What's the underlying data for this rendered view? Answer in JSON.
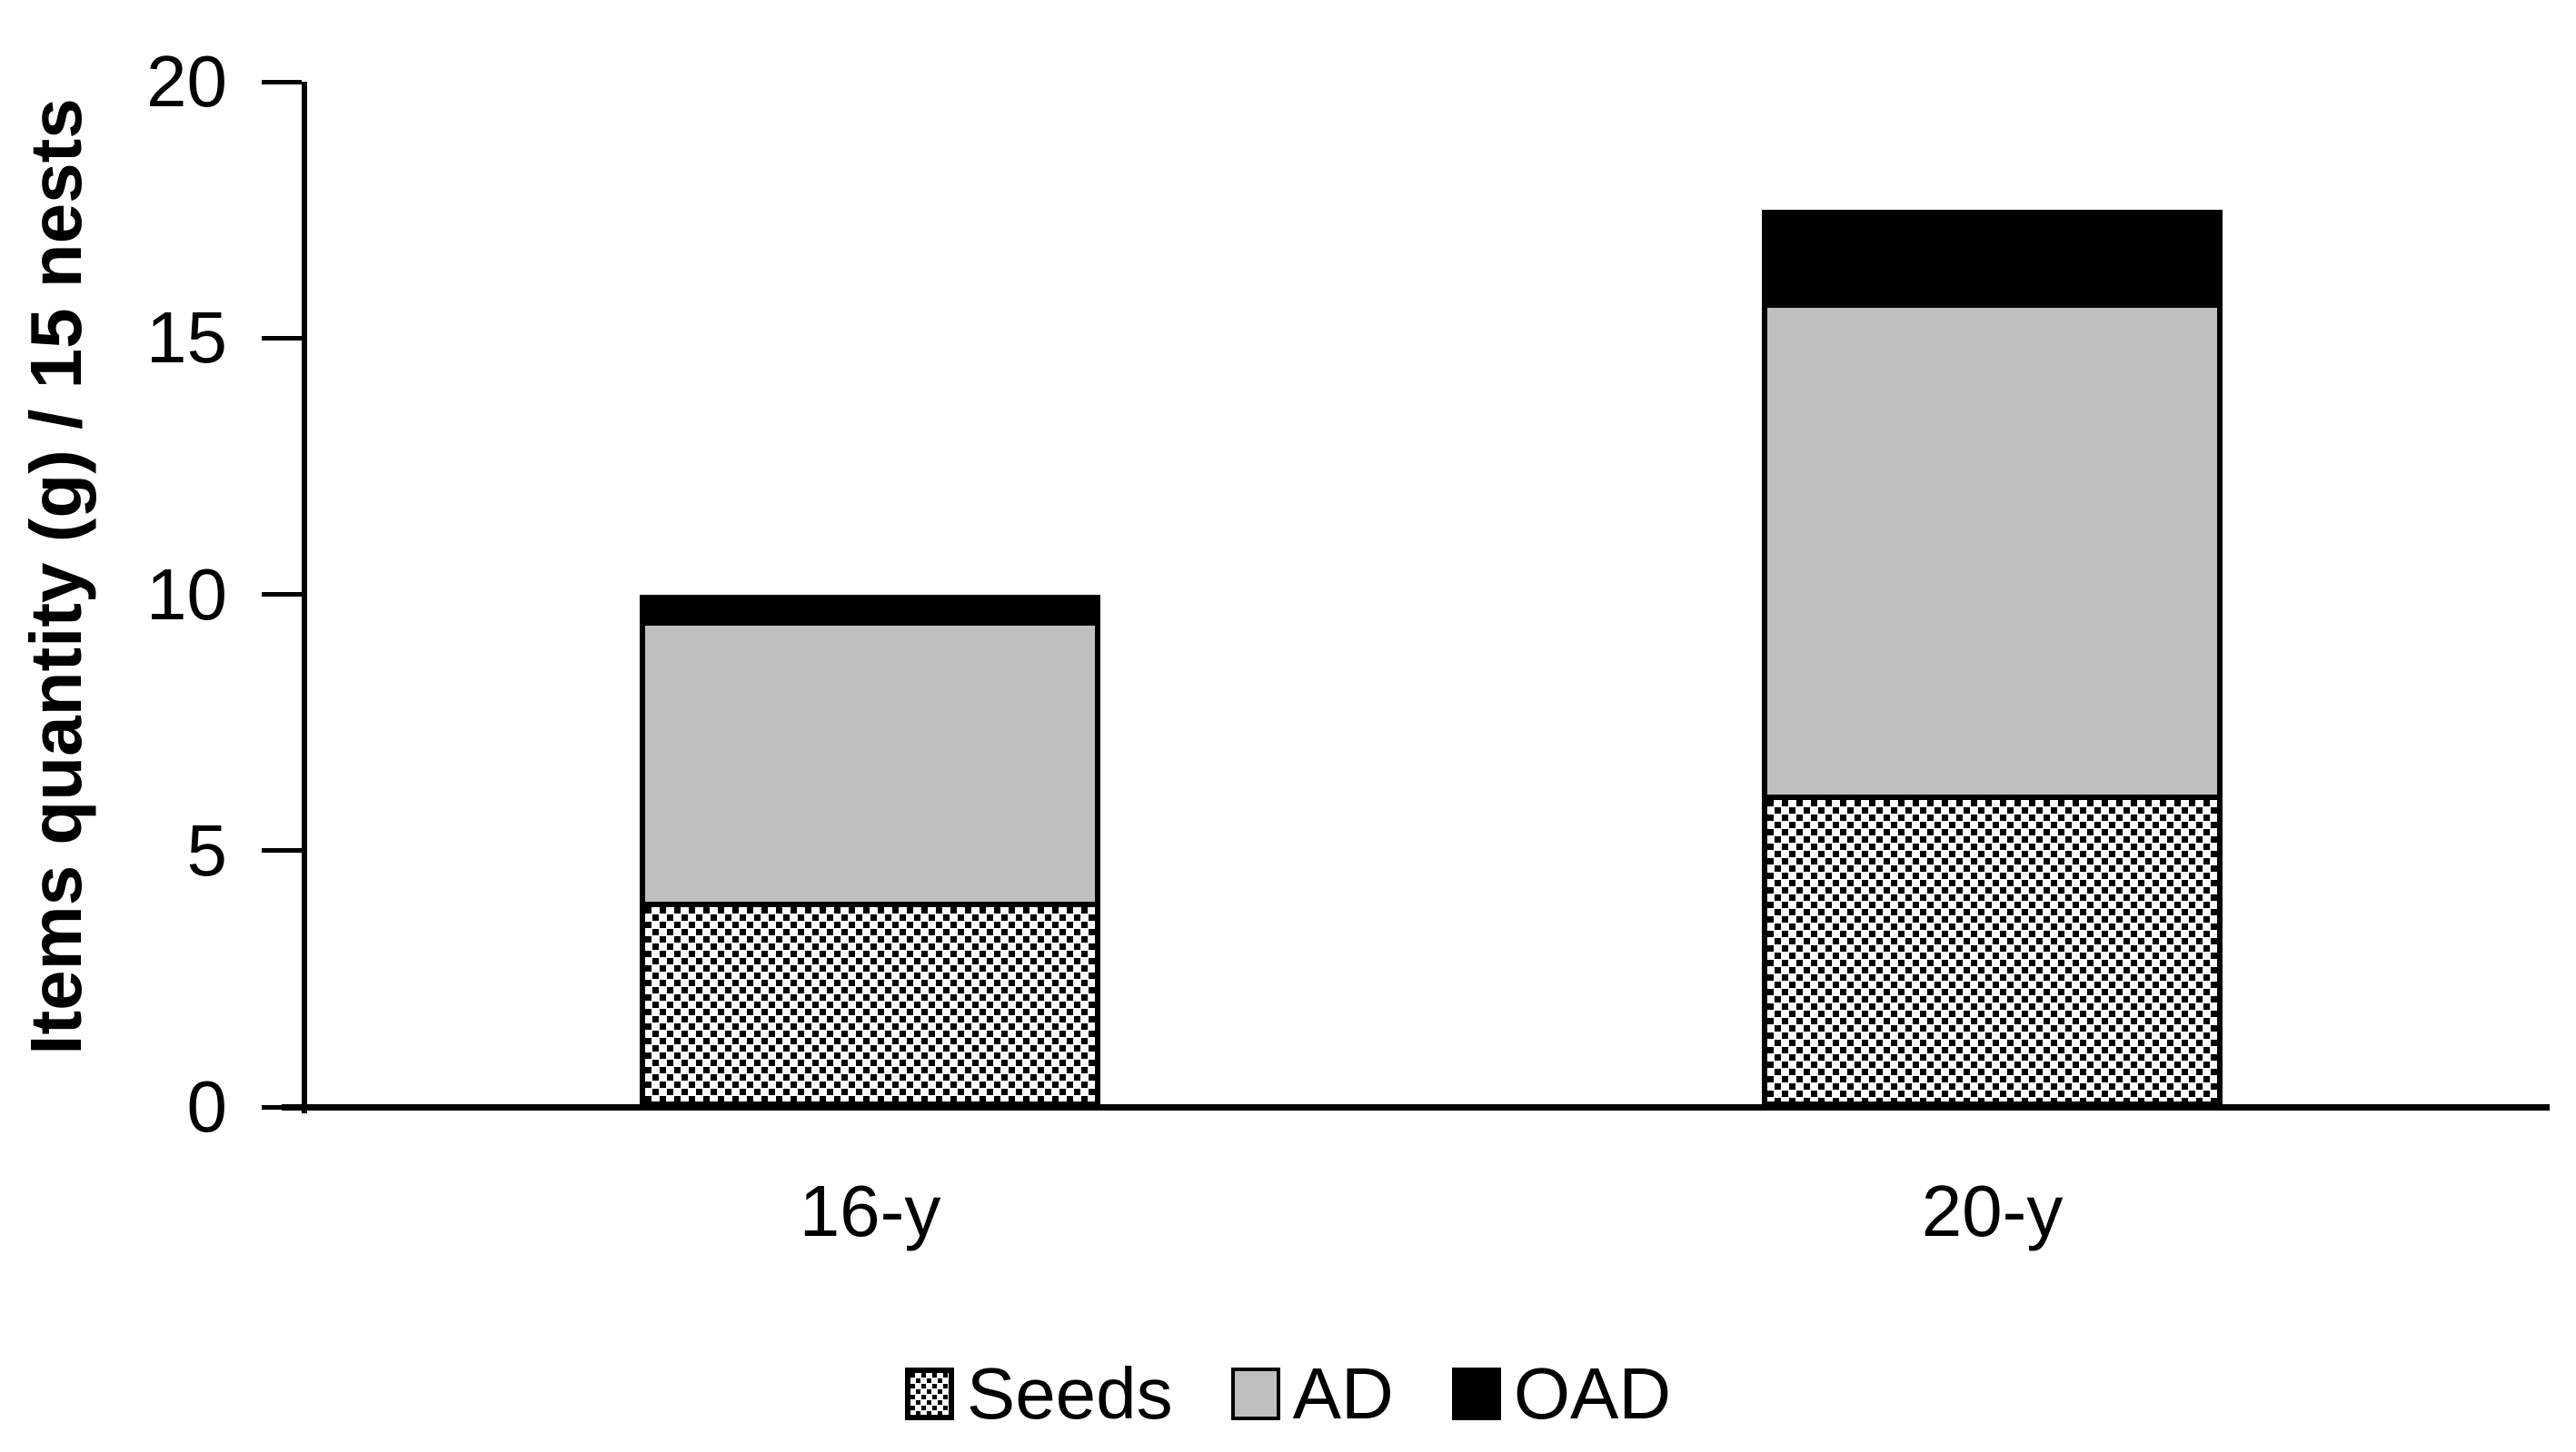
{
  "chart_data": {
    "type": "bar",
    "subtype": "stacked",
    "title": "",
    "xlabel": "",
    "ylabel": "Items quantity (g) / 15 nests",
    "categories": [
      "16-y",
      "20-y"
    ],
    "series": [
      {
        "name": "Seeds",
        "fill": "checker",
        "values": [
          4.0,
          6.1
        ]
      },
      {
        "name": "AD",
        "fill": "gray",
        "values": [
          5.5,
          9.6
        ]
      },
      {
        "name": "OAD",
        "fill": "black",
        "values": [
          0.5,
          1.8
        ]
      }
    ],
    "stack_totals": [
      10.0,
      17.5
    ],
    "ylim": [
      0,
      20
    ],
    "yticks": [
      "0",
      "5",
      "10",
      "15",
      "20"
    ],
    "ytick_values": [
      0,
      5,
      10,
      15,
      20
    ],
    "grid": false,
    "legend_position": "bottom",
    "legend_entries": [
      "Seeds",
      "AD",
      "OAD"
    ],
    "colors": {
      "axis": "#000000",
      "seeds_pattern_fg": "#000000",
      "seeds_pattern_bg": "#ffffff",
      "ad_fill": "#bfbfbf",
      "oad_fill": "#000000",
      "text": "#000000",
      "background": "#ffffff"
    }
  },
  "layout_labels": {
    "y_axis_title": "Items quantity (g) / 15 nests"
  }
}
